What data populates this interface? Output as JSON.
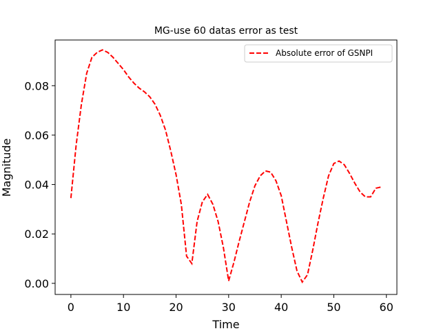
{
  "chart_data": {
    "type": "line",
    "title": "MG-use 60 datas error as test",
    "xlabel": "Time",
    "ylabel": "Magnitude",
    "xlim": [
      -3,
      62
    ],
    "ylim": [
      -0.0045,
      0.0985
    ],
    "xticks": [
      0,
      10,
      20,
      30,
      40,
      50,
      60
    ],
    "xtick_labels": [
      "0",
      "10",
      "20",
      "30",
      "40",
      "50",
      "60"
    ],
    "yticks": [
      0.0,
      0.02,
      0.04,
      0.06,
      0.08
    ],
    "ytick_labels": [
      "0.00",
      "0.02",
      "0.04",
      "0.06",
      "0.08"
    ],
    "grid": false,
    "legend_position": "top-right",
    "series": [
      {
        "name": "Absolute error of GSNPI",
        "color": "#ff0000",
        "line_style": "dashed",
        "x": [
          0,
          1,
          2,
          3,
          4,
          5,
          6,
          7,
          8,
          9,
          10,
          11,
          12,
          13,
          14,
          15,
          16,
          17,
          18,
          19,
          20,
          21,
          22,
          23,
          24,
          25,
          26,
          27,
          28,
          29,
          30,
          31,
          32,
          33,
          34,
          35,
          36,
          37,
          38,
          39,
          40,
          41,
          42,
          43,
          44,
          45,
          46,
          47,
          48,
          49,
          50,
          51,
          52,
          53,
          54,
          55,
          56,
          57,
          58,
          59
        ],
        "y": [
          0.0345,
          0.056,
          0.0725,
          0.085,
          0.0915,
          0.0935,
          0.0945,
          0.0935,
          0.0915,
          0.089,
          0.0865,
          0.0835,
          0.081,
          0.079,
          0.0775,
          0.0755,
          0.0725,
          0.068,
          0.062,
          0.0535,
          0.044,
          0.032,
          0.011,
          0.008,
          0.025,
          0.033,
          0.036,
          0.032,
          0.025,
          0.0145,
          0.001,
          0.0085,
          0.017,
          0.025,
          0.033,
          0.0395,
          0.0435,
          0.0455,
          0.045,
          0.0415,
          0.0355,
          0.025,
          0.0145,
          0.005,
          0.0005,
          0.0035,
          0.0135,
          0.0245,
          0.0345,
          0.0435,
          0.0485,
          0.0495,
          0.048,
          0.0445,
          0.0405,
          0.037,
          0.035,
          0.035,
          0.0385,
          0.039
        ]
      }
    ]
  }
}
